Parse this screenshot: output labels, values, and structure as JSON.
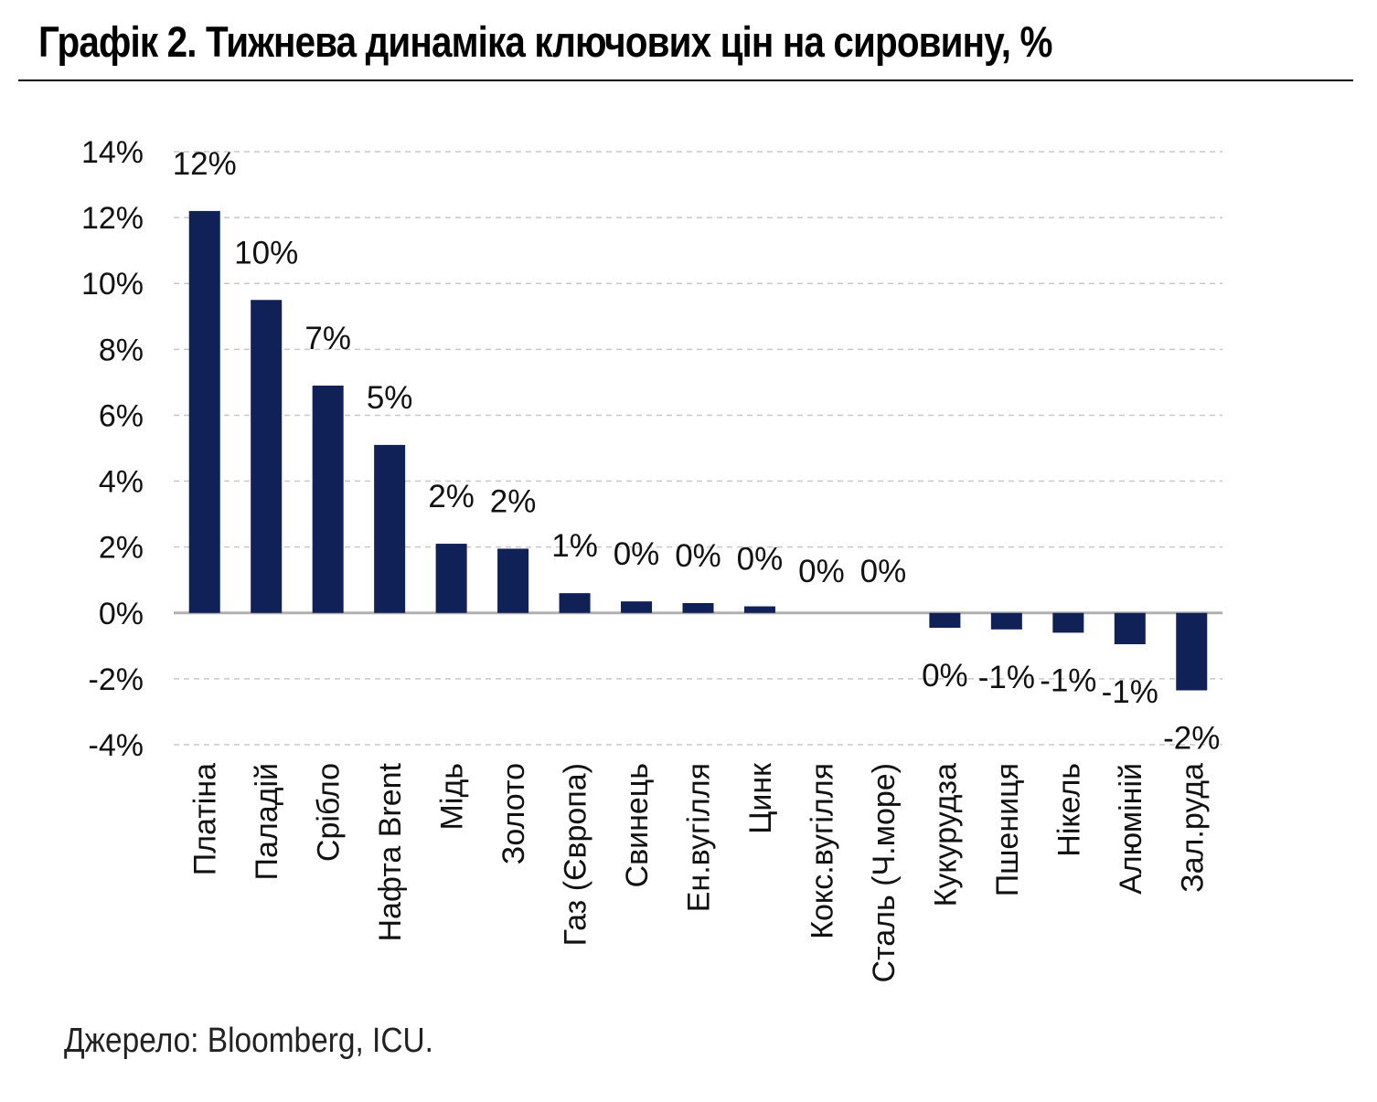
{
  "title": "Графік 2. Тижнева динаміка ключових цін на сировину, %",
  "source": "Джерело: Bloomberg, ICU.",
  "colors": {
    "bar": "#0f2157",
    "grid": "#c8c8c8",
    "axis": "#b0b0b0"
  },
  "chart_data": {
    "type": "bar",
    "title": "Графік 2. Тижнева динаміка ключових цін на сировину, %",
    "xlabel": "",
    "ylabel": "",
    "ylim": [
      -4,
      14
    ],
    "yticks": [
      14,
      12,
      10,
      8,
      6,
      4,
      2,
      0,
      -2,
      -4
    ],
    "ytick_labels": [
      "14%",
      "12%",
      "10%",
      "8%",
      "6%",
      "4%",
      "2%",
      "0%",
      "-2%",
      "-4%"
    ],
    "grid": true,
    "categories": [
      "Платіна",
      "Паладій",
      "Срібло",
      "Нафта Brent",
      "Мідь",
      "Золото",
      "Газ (Європа)",
      "Свинець",
      "Ен.вугілля",
      "Цинк",
      "Кокс.вугілля",
      "Сталь (Ч.море)",
      "Кукурудза",
      "Пшениця",
      "Нікель",
      "Алюміній",
      "Зал.руда"
    ],
    "values": [
      12.2,
      9.5,
      6.9,
      5.1,
      2.1,
      1.95,
      0.6,
      0.35,
      0.3,
      0.2,
      0.0,
      0.0,
      -0.45,
      -0.5,
      -0.6,
      -0.95,
      -2.35
    ],
    "data_labels": [
      "12%",
      "10%",
      "7%",
      "5%",
      "2%",
      "2%",
      "1%",
      "0%",
      "0%",
      "0%",
      "0%",
      "0%",
      "0%",
      "-1%",
      "-1%",
      "-1%",
      "-2%"
    ]
  }
}
